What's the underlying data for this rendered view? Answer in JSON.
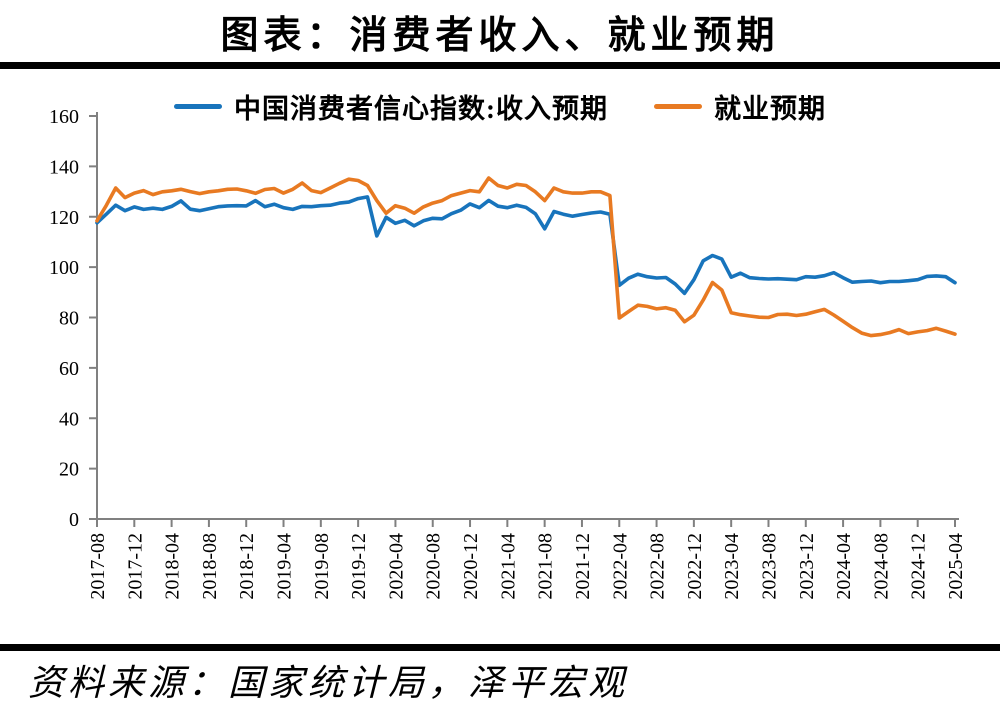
{
  "page": {
    "title": "图表：消费者收入、就业预期",
    "source": "资料来源：国家统计局，泽平宏观"
  },
  "chart_data": {
    "type": "line",
    "title": "图表：消费者收入、就业预期",
    "xlabel": "",
    "ylabel": "",
    "ylim": [
      0,
      160
    ],
    "y_ticks": [
      0,
      20,
      40,
      60,
      80,
      100,
      120,
      140,
      160
    ],
    "grid": false,
    "legend_position": "top",
    "axis_color": "#808080",
    "x_tick_every": 4,
    "x_tick_labels": [
      "2017-08",
      "2017-12",
      "2018-04",
      "2018-08",
      "2018-12",
      "2019-04",
      "2019-08",
      "2019-12",
      "2020-04",
      "2020-08",
      "2020-12",
      "2021-04",
      "2021-08",
      "2021-12",
      "2022-04",
      "2022-08",
      "2022-12",
      "2023-04",
      "2023-08",
      "2023-12",
      "2024-04",
      "2024-08",
      "2024-12",
      "2025-04"
    ],
    "x": [
      "2017-08",
      "2017-09",
      "2017-10",
      "2017-11",
      "2017-12",
      "2018-01",
      "2018-02",
      "2018-03",
      "2018-04",
      "2018-05",
      "2018-06",
      "2018-07",
      "2018-08",
      "2018-09",
      "2018-10",
      "2018-11",
      "2018-12",
      "2019-01",
      "2019-02",
      "2019-03",
      "2019-04",
      "2019-05",
      "2019-06",
      "2019-07",
      "2019-08",
      "2019-09",
      "2019-10",
      "2019-11",
      "2019-12",
      "2020-01",
      "2020-02",
      "2020-03",
      "2020-04",
      "2020-05",
      "2020-06",
      "2020-07",
      "2020-08",
      "2020-09",
      "2020-10",
      "2020-11",
      "2020-12",
      "2021-01",
      "2021-02",
      "2021-03",
      "2021-04",
      "2021-05",
      "2021-06",
      "2021-07",
      "2021-08",
      "2021-09",
      "2021-10",
      "2021-11",
      "2021-12",
      "2022-01",
      "2022-02",
      "2022-03",
      "2022-04",
      "2022-05",
      "2022-06",
      "2022-07",
      "2022-08",
      "2022-09",
      "2022-10",
      "2022-11",
      "2022-12",
      "2023-01",
      "2023-02",
      "2023-03",
      "2023-04",
      "2023-05",
      "2023-06",
      "2023-07",
      "2023-08",
      "2023-09",
      "2023-10",
      "2023-11",
      "2023-12",
      "2024-01",
      "2024-02",
      "2024-03",
      "2024-04",
      "2024-05",
      "2024-06",
      "2024-07",
      "2024-08",
      "2024-09",
      "2024-10",
      "2024-11",
      "2024-12",
      "2025-01",
      "2025-02",
      "2025-03",
      "2025-04"
    ],
    "series": [
      {
        "name": "中国消费者信心指数:收入预期",
        "color": "#1874bc",
        "values": [
          117.6,
          121.0,
          124.6,
          122.4,
          123.9,
          122.9,
          123.4,
          122.9,
          124.1,
          126.3,
          123.0,
          122.4,
          123.2,
          124.0,
          124.3,
          124.4,
          124.3,
          126.4,
          124.0,
          125.0,
          123.6,
          122.9,
          124.1,
          124.0,
          124.4,
          124.6,
          125.4,
          125.8,
          127.2,
          127.9,
          112.4,
          119.8,
          117.4,
          118.6,
          116.4,
          118.4,
          119.4,
          119.2,
          121.2,
          122.6,
          125.1,
          123.6,
          126.5,
          124.2,
          123.6,
          124.6,
          123.7,
          121.2,
          115.2,
          122.1,
          121.0,
          120.2,
          120.9,
          121.5,
          121.9,
          121.0,
          92.8,
          95.6,
          97.2,
          96.2,
          95.7,
          95.9,
          93.3,
          89.6,
          95.0,
          102.5,
          104.6,
          103.2,
          96.0,
          97.6,
          95.8,
          95.5,
          95.3,
          95.4,
          95.2,
          95.0,
          96.2,
          96.0,
          96.6,
          97.8,
          95.8,
          94.0,
          94.3,
          94.5,
          93.8,
          94.3,
          94.3,
          94.6,
          95.0,
          96.3,
          96.5,
          96.2,
          93.8
        ]
      },
      {
        "name": "就业预期",
        "color": "#e87a22",
        "values": [
          118.4,
          124.5,
          131.4,
          127.6,
          129.4,
          130.4,
          128.8,
          129.9,
          130.3,
          130.9,
          130.0,
          129.2,
          129.9,
          130.3,
          130.9,
          131.0,
          130.3,
          129.3,
          130.8,
          131.2,
          129.4,
          130.9,
          133.4,
          130.4,
          129.6,
          131.4,
          133.3,
          134.9,
          134.4,
          132.4,
          126.4,
          121.4,
          124.4,
          123.4,
          121.4,
          123.9,
          125.4,
          126.4,
          128.4,
          129.4,
          130.4,
          129.9,
          135.4,
          132.4,
          131.4,
          132.9,
          132.4,
          129.9,
          126.4,
          131.4,
          129.9,
          129.4,
          129.4,
          129.9,
          129.9,
          128.4,
          79.8,
          82.4,
          84.9,
          84.4,
          83.4,
          83.9,
          82.9,
          78.3,
          80.9,
          86.9,
          93.9,
          90.9,
          81.9,
          81.1,
          80.6,
          80.1,
          80.0,
          81.2,
          81.3,
          80.8,
          81.3,
          82.3,
          83.2,
          81.0,
          78.5,
          76.0,
          73.8,
          72.8,
          73.2,
          74.0,
          75.2,
          73.6,
          74.3,
          74.8,
          75.7,
          74.6,
          73.4
        ]
      }
    ]
  }
}
